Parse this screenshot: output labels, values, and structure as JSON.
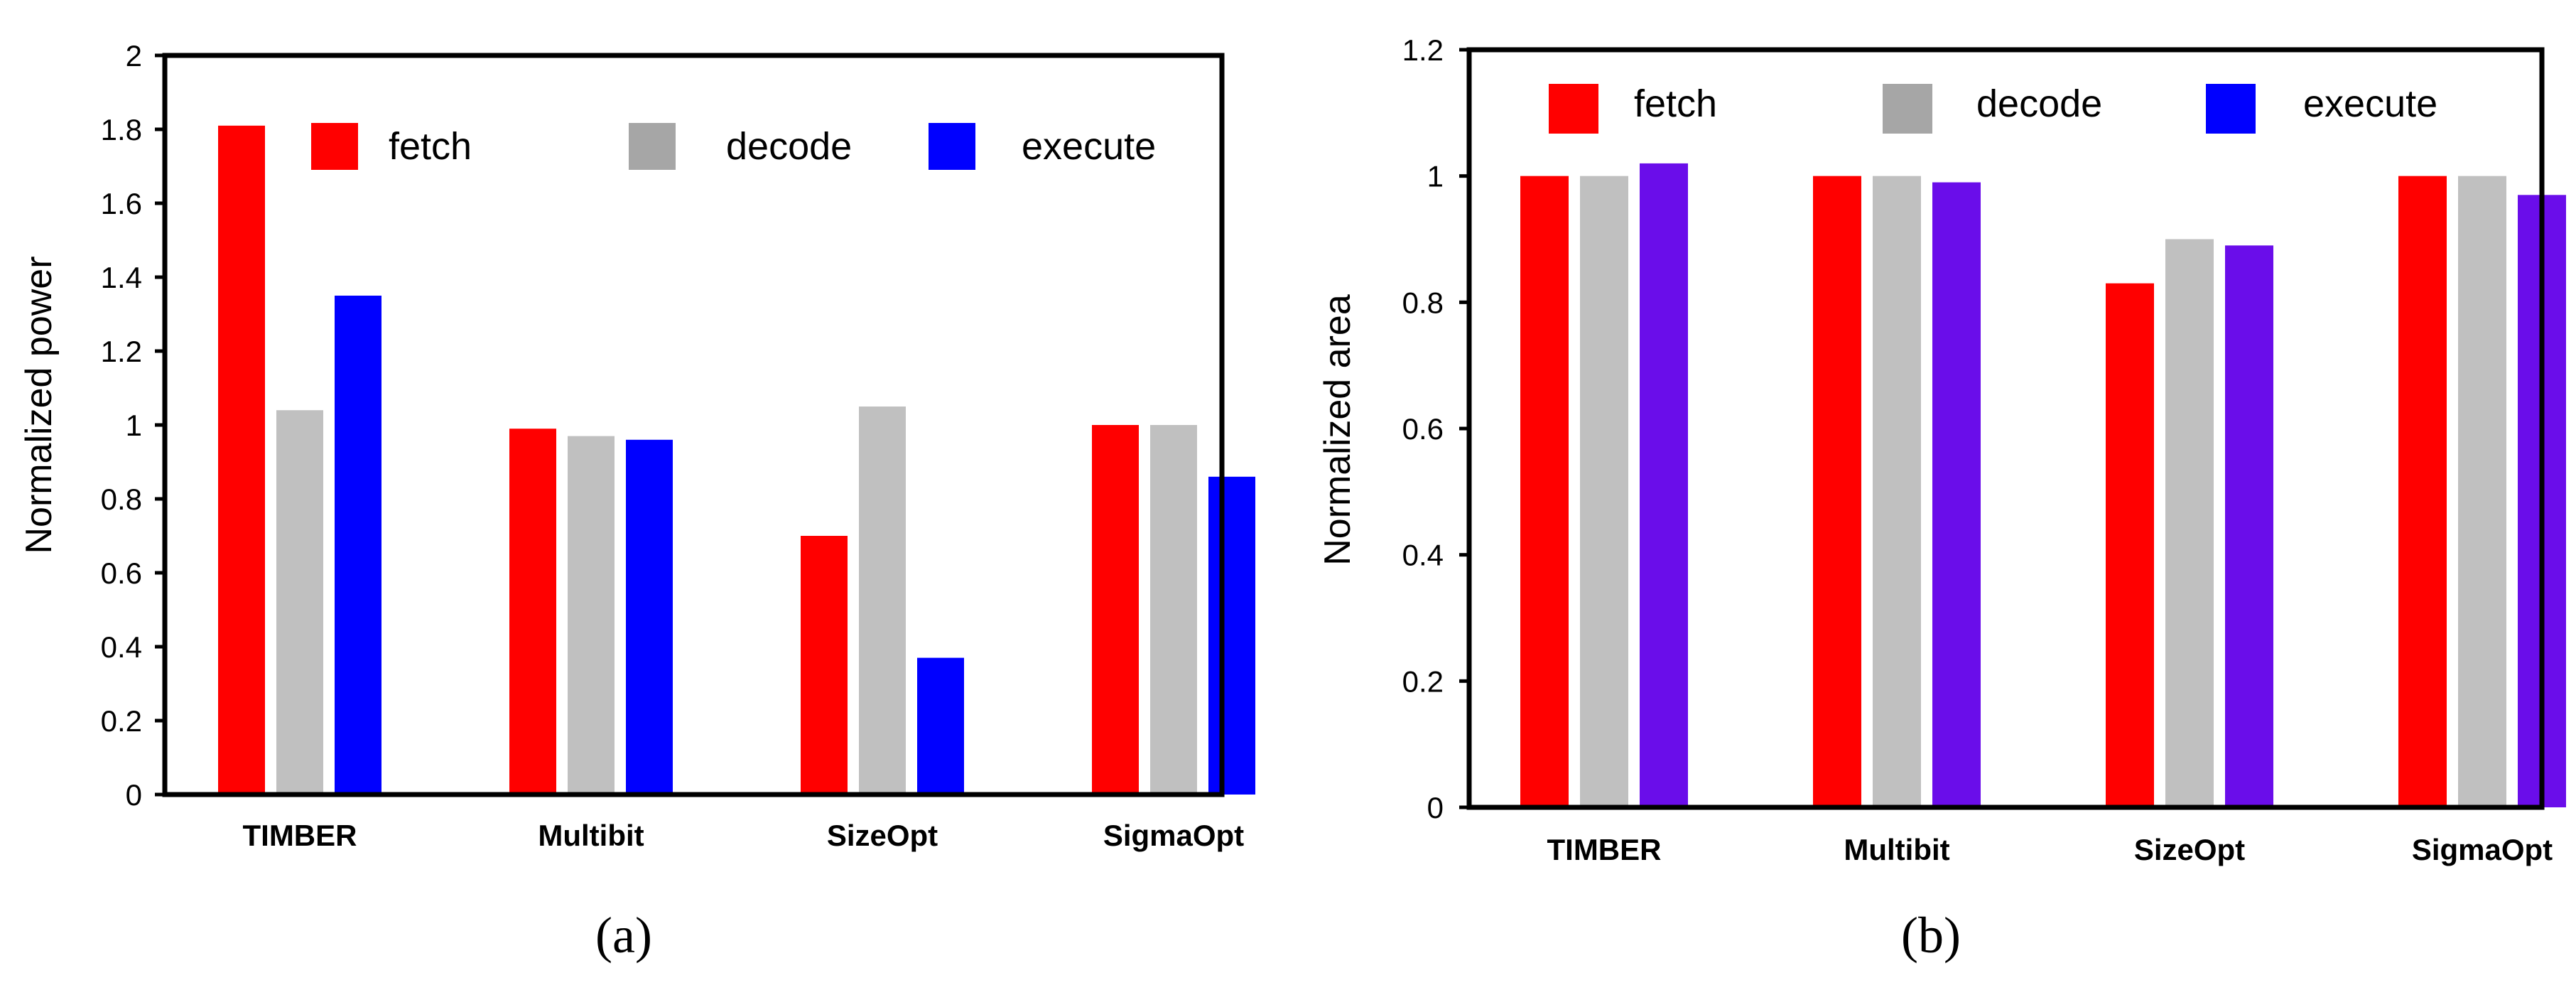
{
  "chart_data": [
    {
      "type": "bar",
      "caption": "(a)",
      "title": "",
      "xlabel": "",
      "ylabel": "Normalized power",
      "ylim": [
        0,
        2
      ],
      "yticks": [
        "0",
        "0.2",
        "0.4",
        "0.6",
        "0.8",
        "1",
        "1.2",
        "1.4",
        "1.6",
        "1.8",
        "2"
      ],
      "categories": [
        "TIMBER",
        "Multibit",
        "SizeOpt",
        "SigmaOpt"
      ],
      "legend_position": "top",
      "grid": false,
      "series": [
        {
          "name": "fetch",
          "color": "#ff0000",
          "values": [
            1.81,
            0.99,
            0.7,
            1.0
          ]
        },
        {
          "name": "decode",
          "color": "#c0c0c0",
          "legend_color": "#a6a6a6",
          "values": [
            1.04,
            0.97,
            1.05,
            1.0
          ]
        },
        {
          "name": "execute",
          "color": "#0000ff",
          "values": [
            1.35,
            0.96,
            0.37,
            0.86
          ]
        }
      ]
    },
    {
      "type": "bar",
      "caption": "(b)",
      "title": "",
      "xlabel": "",
      "ylabel": "Normalized area",
      "ylim": [
        0,
        1.2
      ],
      "yticks": [
        "0",
        "0.2",
        "0.4",
        "0.6",
        "0.8",
        "1",
        "1.2"
      ],
      "categories": [
        "TIMBER",
        "Multibit",
        "SizeOpt",
        "SigmaOpt"
      ],
      "legend_position": "top",
      "grid": false,
      "series": [
        {
          "name": "fetch",
          "color": "#ff0000",
          "values": [
            1.0,
            1.0,
            0.83,
            1.0
          ]
        },
        {
          "name": "decode",
          "color": "#c0c0c0",
          "legend_color": "#a6a6a6",
          "values": [
            1.0,
            1.0,
            0.9,
            1.0
          ]
        },
        {
          "name": "execute",
          "color": "#6a0dea",
          "legend_color": "#0000ff",
          "values": [
            1.02,
            0.99,
            0.89,
            0.97
          ]
        }
      ]
    }
  ]
}
